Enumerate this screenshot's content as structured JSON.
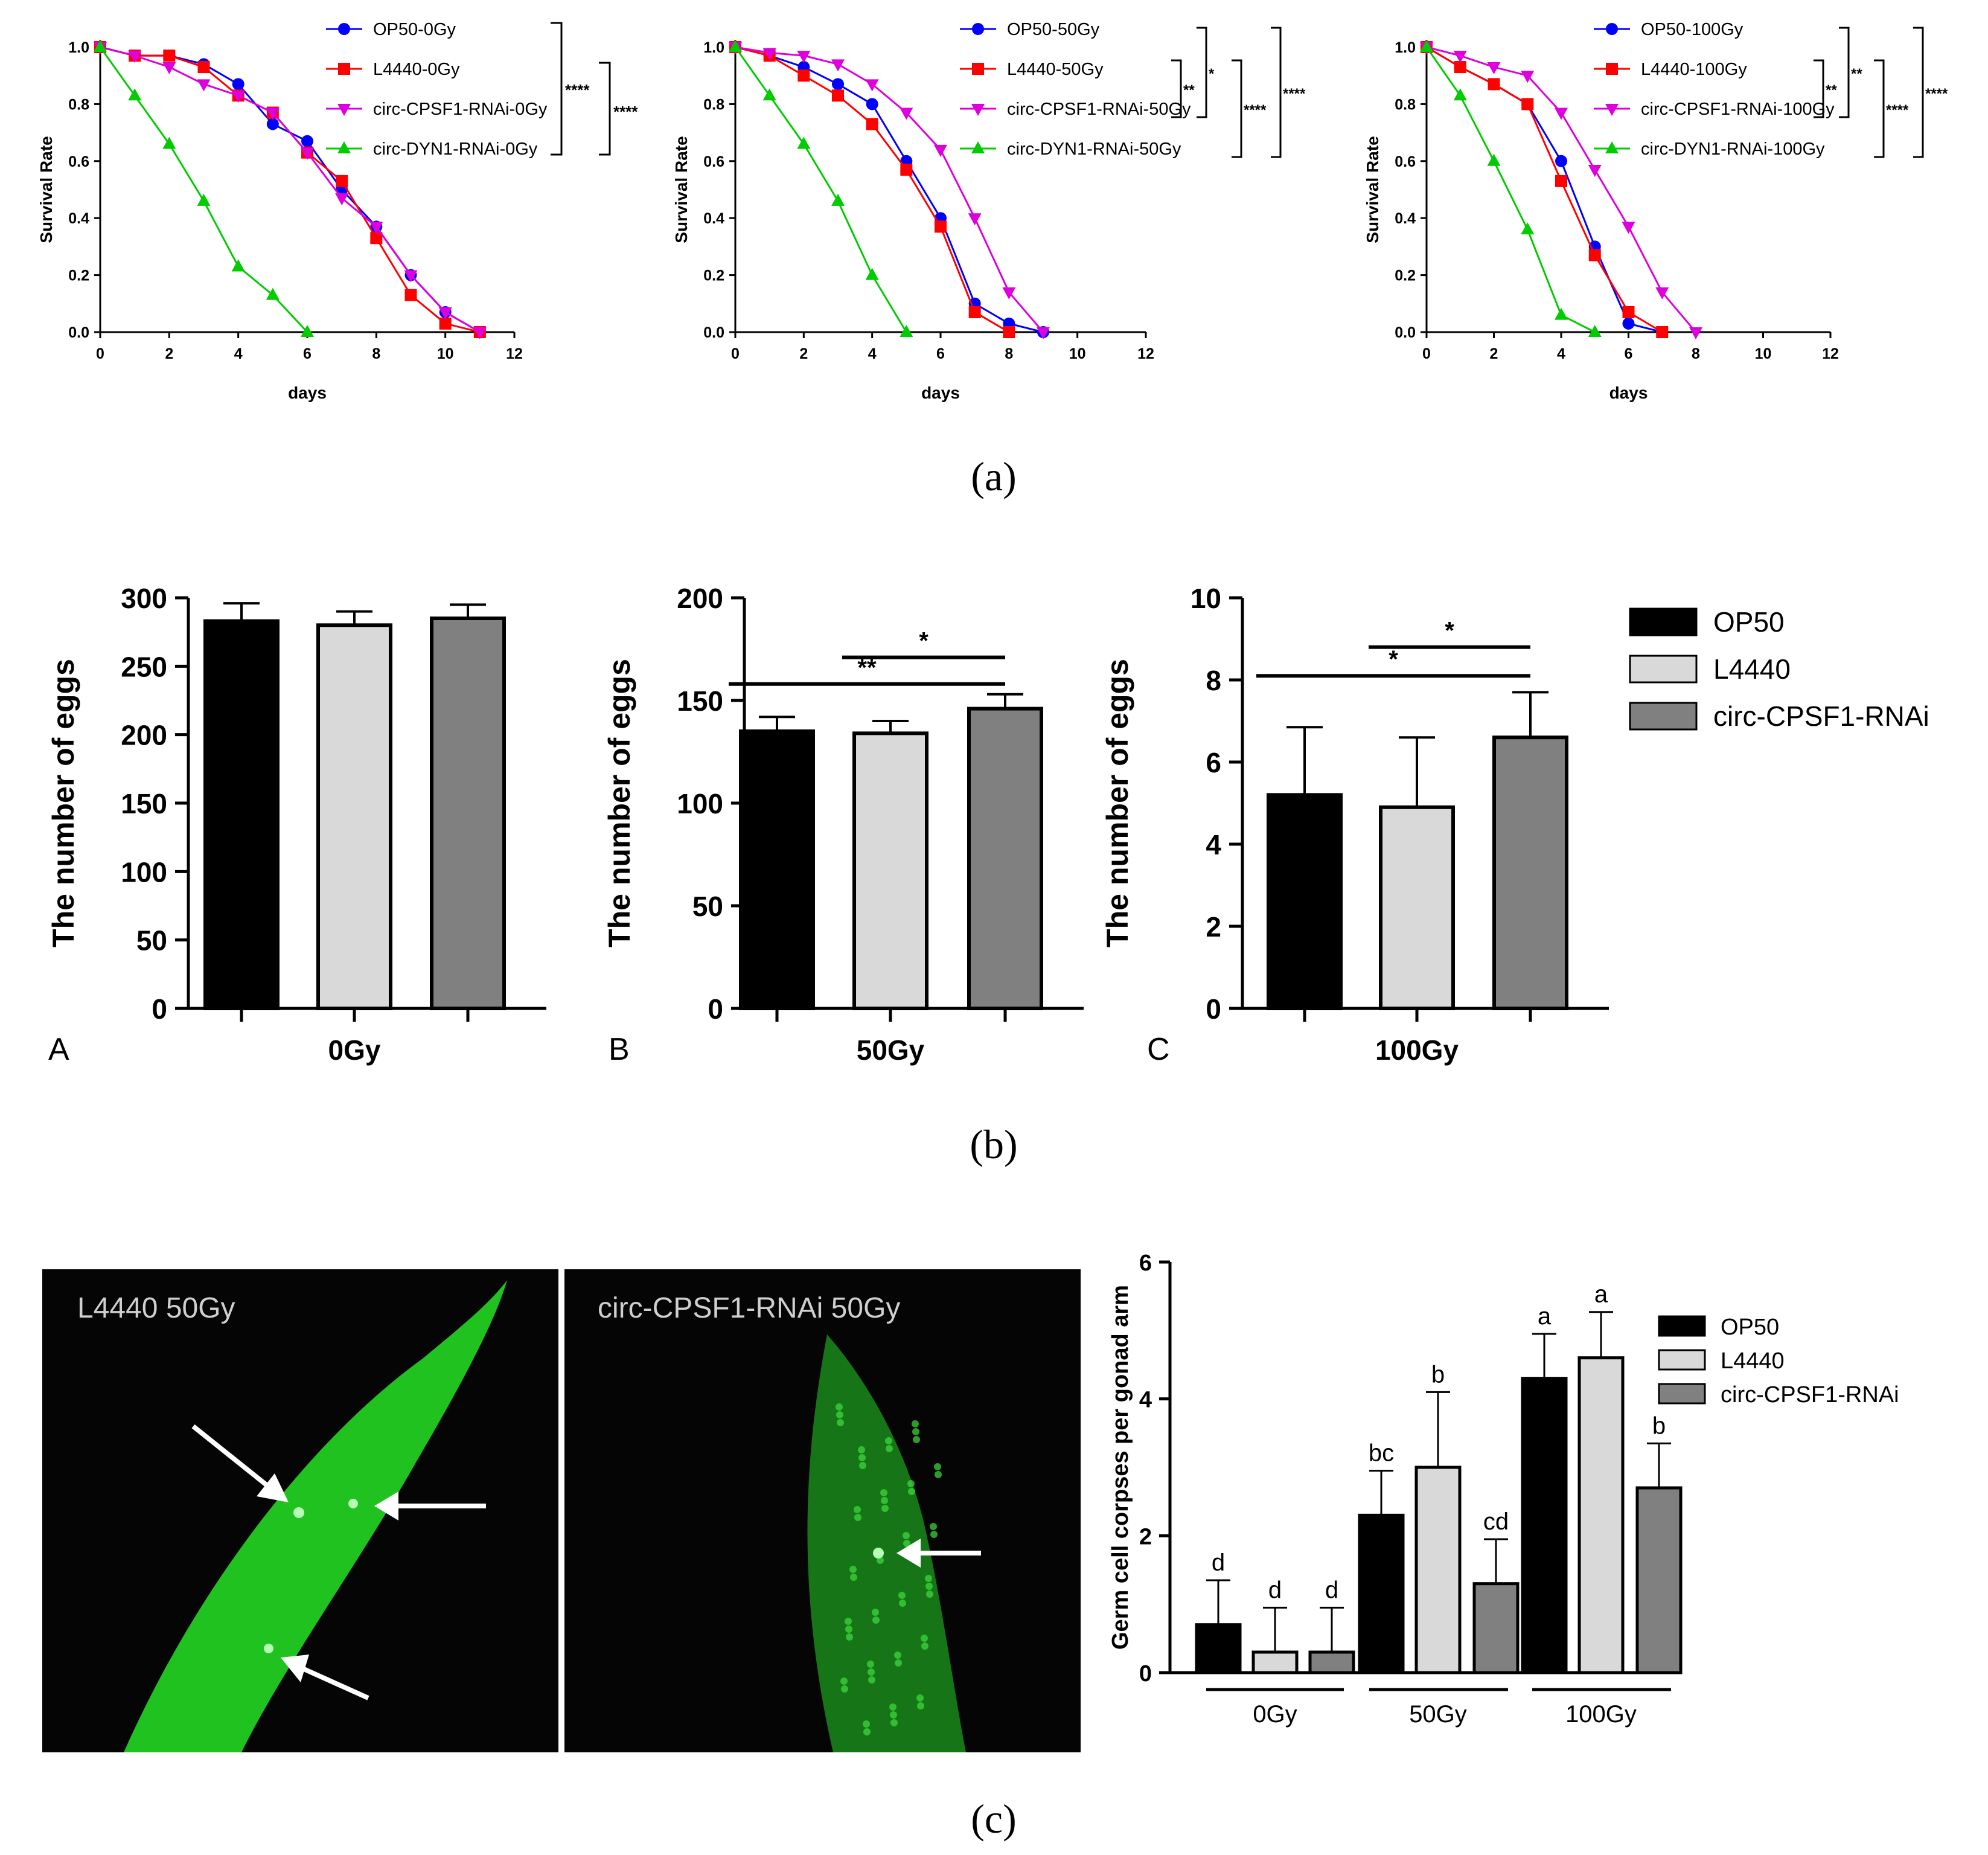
{
  "figure": {
    "panel_a_caption": "(a)",
    "panel_b_caption": "(b)",
    "panel_c_caption": "(c)"
  },
  "colors": {
    "OP50": "#0000ff",
    "L4440": "#ff0000",
    "circ-CPSF1-RNAi": "#dd00dd",
    "circ-DYN1-RNAi": "#00cc00",
    "bar_OP50": "#000000",
    "bar_L4440": "#d9d9d9",
    "bar_circ": "#808080",
    "micro_bg": "#050505",
    "micro_green": "#22cc22"
  },
  "micrographs": [
    {
      "label": "L4440   50Gy"
    },
    {
      "label": "circ-CPSF1-RNAi   50Gy"
    }
  ],
  "chart_data": [
    {
      "type": "line",
      "panel": "a-0Gy",
      "xlabel": "days",
      "ylabel": "Survival Rate",
      "xlim": [
        0,
        12
      ],
      "ylim": [
        0,
        1.0
      ],
      "xticks": [
        "0",
        "2",
        "4",
        "6",
        "8",
        "10",
        "12"
      ],
      "yticks": [
        "0.0",
        "0.2",
        "0.4",
        "0.6",
        "0.8",
        "1.0"
      ],
      "series": [
        {
          "name": "OP50-0Gy",
          "marker": "circle",
          "x": [
            0,
            1,
            2,
            3,
            4,
            5,
            6,
            7,
            8,
            9,
            10,
            11
          ],
          "y": [
            1.0,
            0.97,
            0.97,
            0.94,
            0.87,
            0.73,
            0.67,
            0.5,
            0.37,
            0.2,
            0.07,
            0.0
          ]
        },
        {
          "name": "L4440-0Gy",
          "marker": "square",
          "x": [
            0,
            1,
            2,
            3,
            4,
            5,
            6,
            7,
            8,
            9,
            10,
            11
          ],
          "y": [
            1.0,
            0.97,
            0.97,
            0.93,
            0.83,
            0.77,
            0.63,
            0.53,
            0.33,
            0.13,
            0.03,
            0.0
          ]
        },
        {
          "name": "circ-CPSF1-RNAi-0Gy",
          "marker": "triangle-down",
          "x": [
            0,
            1,
            2,
            3,
            4,
            5,
            6,
            7,
            8,
            9,
            10,
            11
          ],
          "y": [
            1.0,
            0.97,
            0.93,
            0.87,
            0.83,
            0.77,
            0.63,
            0.47,
            0.37,
            0.2,
            0.07,
            0.0
          ]
        },
        {
          "name": "circ-DYN1-RNAi-0Gy",
          "marker": "triangle-up",
          "x": [
            0,
            1,
            2,
            3,
            4,
            5,
            6
          ],
          "y": [
            1.0,
            0.83,
            0.66,
            0.46,
            0.23,
            0.13,
            0.0
          ]
        }
      ],
      "significance": [
        "****",
        "****"
      ]
    },
    {
      "type": "line",
      "panel": "a-50Gy",
      "xlabel": "days",
      "ylabel": "Survival Rate",
      "xlim": [
        0,
        12
      ],
      "ylim": [
        0,
        1.0
      ],
      "xticks": [
        "0",
        "2",
        "4",
        "6",
        "8",
        "10",
        "12"
      ],
      "yticks": [
        "0.0",
        "0.2",
        "0.4",
        "0.6",
        "0.8",
        "1.0"
      ],
      "series": [
        {
          "name": "OP50-50Gy",
          "marker": "circle",
          "x": [
            0,
            1,
            2,
            3,
            4,
            5,
            6,
            7,
            8,
            9
          ],
          "y": [
            1.0,
            0.97,
            0.93,
            0.87,
            0.8,
            0.6,
            0.4,
            0.1,
            0.03,
            0.0
          ]
        },
        {
          "name": "L4440-50Gy",
          "marker": "square",
          "x": [
            0,
            1,
            2,
            3,
            4,
            5,
            6,
            7,
            8
          ],
          "y": [
            1.0,
            0.97,
            0.9,
            0.83,
            0.73,
            0.57,
            0.37,
            0.07,
            0.0
          ]
        },
        {
          "name": "circ-CPSF1-RNAi-50Gy",
          "marker": "triangle-down",
          "x": [
            0,
            1,
            2,
            3,
            4,
            5,
            6,
            7,
            8,
            9
          ],
          "y": [
            1.0,
            0.98,
            0.97,
            0.94,
            0.87,
            0.77,
            0.64,
            0.4,
            0.14,
            0.0
          ]
        },
        {
          "name": "circ-DYN1-RNAi-50Gy",
          "marker": "triangle-up",
          "x": [
            0,
            1,
            2,
            3,
            4,
            5
          ],
          "y": [
            1.0,
            0.83,
            0.66,
            0.46,
            0.2,
            0.0
          ]
        }
      ],
      "significance": [
        "**",
        "*",
        "****",
        "****"
      ]
    },
    {
      "type": "line",
      "panel": "a-100Gy",
      "xlabel": "days",
      "ylabel": "Survival Rate",
      "xlim": [
        0,
        12
      ],
      "ylim": [
        0,
        1.0
      ],
      "xticks": [
        "0",
        "2",
        "4",
        "6",
        "8",
        "10",
        "12"
      ],
      "yticks": [
        "0.0",
        "0.2",
        "0.4",
        "0.6",
        "0.8",
        "1.0"
      ],
      "series": [
        {
          "name": "OP50-100Gy",
          "marker": "circle",
          "x": [
            0,
            1,
            2,
            3,
            4,
            5,
            6,
            7
          ],
          "y": [
            1.0,
            0.93,
            0.87,
            0.8,
            0.6,
            0.3,
            0.03,
            0.0
          ]
        },
        {
          "name": "L4440-100Gy",
          "marker": "square",
          "x": [
            0,
            1,
            2,
            3,
            4,
            5,
            6,
            7
          ],
          "y": [
            1.0,
            0.93,
            0.87,
            0.8,
            0.53,
            0.27,
            0.07,
            0.0
          ]
        },
        {
          "name": "circ-CPSF1-RNAi-100Gy",
          "marker": "triangle-down",
          "x": [
            0,
            1,
            2,
            3,
            4,
            5,
            6,
            7,
            8
          ],
          "y": [
            1.0,
            0.97,
            0.93,
            0.9,
            0.77,
            0.57,
            0.37,
            0.14,
            0.0
          ]
        },
        {
          "name": "circ-DYN1-RNAi-100Gy",
          "marker": "triangle-up",
          "x": [
            0,
            1,
            2,
            3,
            4,
            5
          ],
          "y": [
            1.0,
            0.83,
            0.6,
            0.36,
            0.06,
            0.0
          ]
        }
      ],
      "significance": [
        "**",
        "**",
        "****",
        "****"
      ]
    },
    {
      "type": "bar",
      "panel": "b-A",
      "panel_letter": "A",
      "categories": [
        "0Gy"
      ],
      "ylabel": "The number of eggs",
      "ylim": [
        0,
        300
      ],
      "yticks": [
        "0",
        "50",
        "100",
        "150",
        "200",
        "250",
        "300"
      ],
      "series": [
        {
          "name": "OP50",
          "values": [
            283
          ],
          "errors": [
            13
          ]
        },
        {
          "name": "L4440",
          "values": [
            280
          ],
          "errors": [
            10
          ]
        },
        {
          "name": "circ-CPSF1-RNAi",
          "values": [
            285
          ],
          "errors": [
            10
          ]
        }
      ],
      "comparisons": []
    },
    {
      "type": "bar",
      "panel": "b-B",
      "panel_letter": "B",
      "categories": [
        "50Gy"
      ],
      "ylabel": "The number of eggs",
      "ylim": [
        0,
        200
      ],
      "yticks": [
        "0",
        "50",
        "100",
        "150",
        "200"
      ],
      "series": [
        {
          "name": "OP50",
          "values": [
            135
          ],
          "errors": [
            7
          ]
        },
        {
          "name": "L4440",
          "values": [
            134
          ],
          "errors": [
            6
          ]
        },
        {
          "name": "circ-CPSF1-RNAi",
          "values": [
            146
          ],
          "errors": [
            7
          ]
        }
      ],
      "comparisons": [
        {
          "from": 1,
          "to": 2,
          "label": "*",
          "y": 171
        },
        {
          "from": 0,
          "to": 2,
          "label": "**",
          "y": 158
        }
      ]
    },
    {
      "type": "bar",
      "panel": "b-C",
      "panel_letter": "C",
      "categories": [
        "100Gy"
      ],
      "ylabel": "The number of eggs",
      "ylim": [
        0,
        10
      ],
      "yticks": [
        "0",
        "2",
        "4",
        "6",
        "8",
        "10"
      ],
      "series": [
        {
          "name": "OP50",
          "values": [
            5.2
          ],
          "errors": [
            1.65
          ]
        },
        {
          "name": "L4440",
          "values": [
            4.9
          ],
          "errors": [
            1.7
          ]
        },
        {
          "name": "circ-CPSF1-RNAi",
          "values": [
            6.6
          ],
          "errors": [
            1.1
          ]
        }
      ],
      "comparisons": [
        {
          "from": 1,
          "to": 2,
          "label": "*",
          "y": 8.8
        },
        {
          "from": 0,
          "to": 2,
          "label": "*",
          "y": 8.1
        }
      ]
    },
    {
      "type": "bar",
      "panel": "c",
      "categories": [
        "0Gy",
        "50Gy",
        "100Gy"
      ],
      "ylabel": "Germ cell corpses per gonad arm",
      "ylim": [
        0,
        6
      ],
      "yticks": [
        "0",
        "2",
        "4",
        "6"
      ],
      "series": [
        {
          "name": "OP50",
          "values": [
            0.7,
            2.3,
            4.3
          ],
          "errors": [
            0.65,
            0.65,
            0.65
          ],
          "letters": [
            "d",
            "bc",
            "a"
          ]
        },
        {
          "name": "L4440",
          "values": [
            0.3,
            3.0,
            4.6
          ],
          "errors": [
            0.65,
            1.1,
            0.67
          ],
          "letters": [
            "d",
            "b",
            "a"
          ]
        },
        {
          "name": "circ-CPSF1-RNAi",
          "values": [
            0.3,
            1.3,
            2.7
          ],
          "errors": [
            0.65,
            0.65,
            0.65
          ],
          "letters": [
            "d",
            "cd",
            "b"
          ]
        }
      ]
    }
  ],
  "legend_b": [
    "OP50",
    "L4440",
    "circ-CPSF1-RNAi"
  ],
  "legend_c": [
    "OP50",
    "L4440",
    "circ-CPSF1-RNAi"
  ]
}
